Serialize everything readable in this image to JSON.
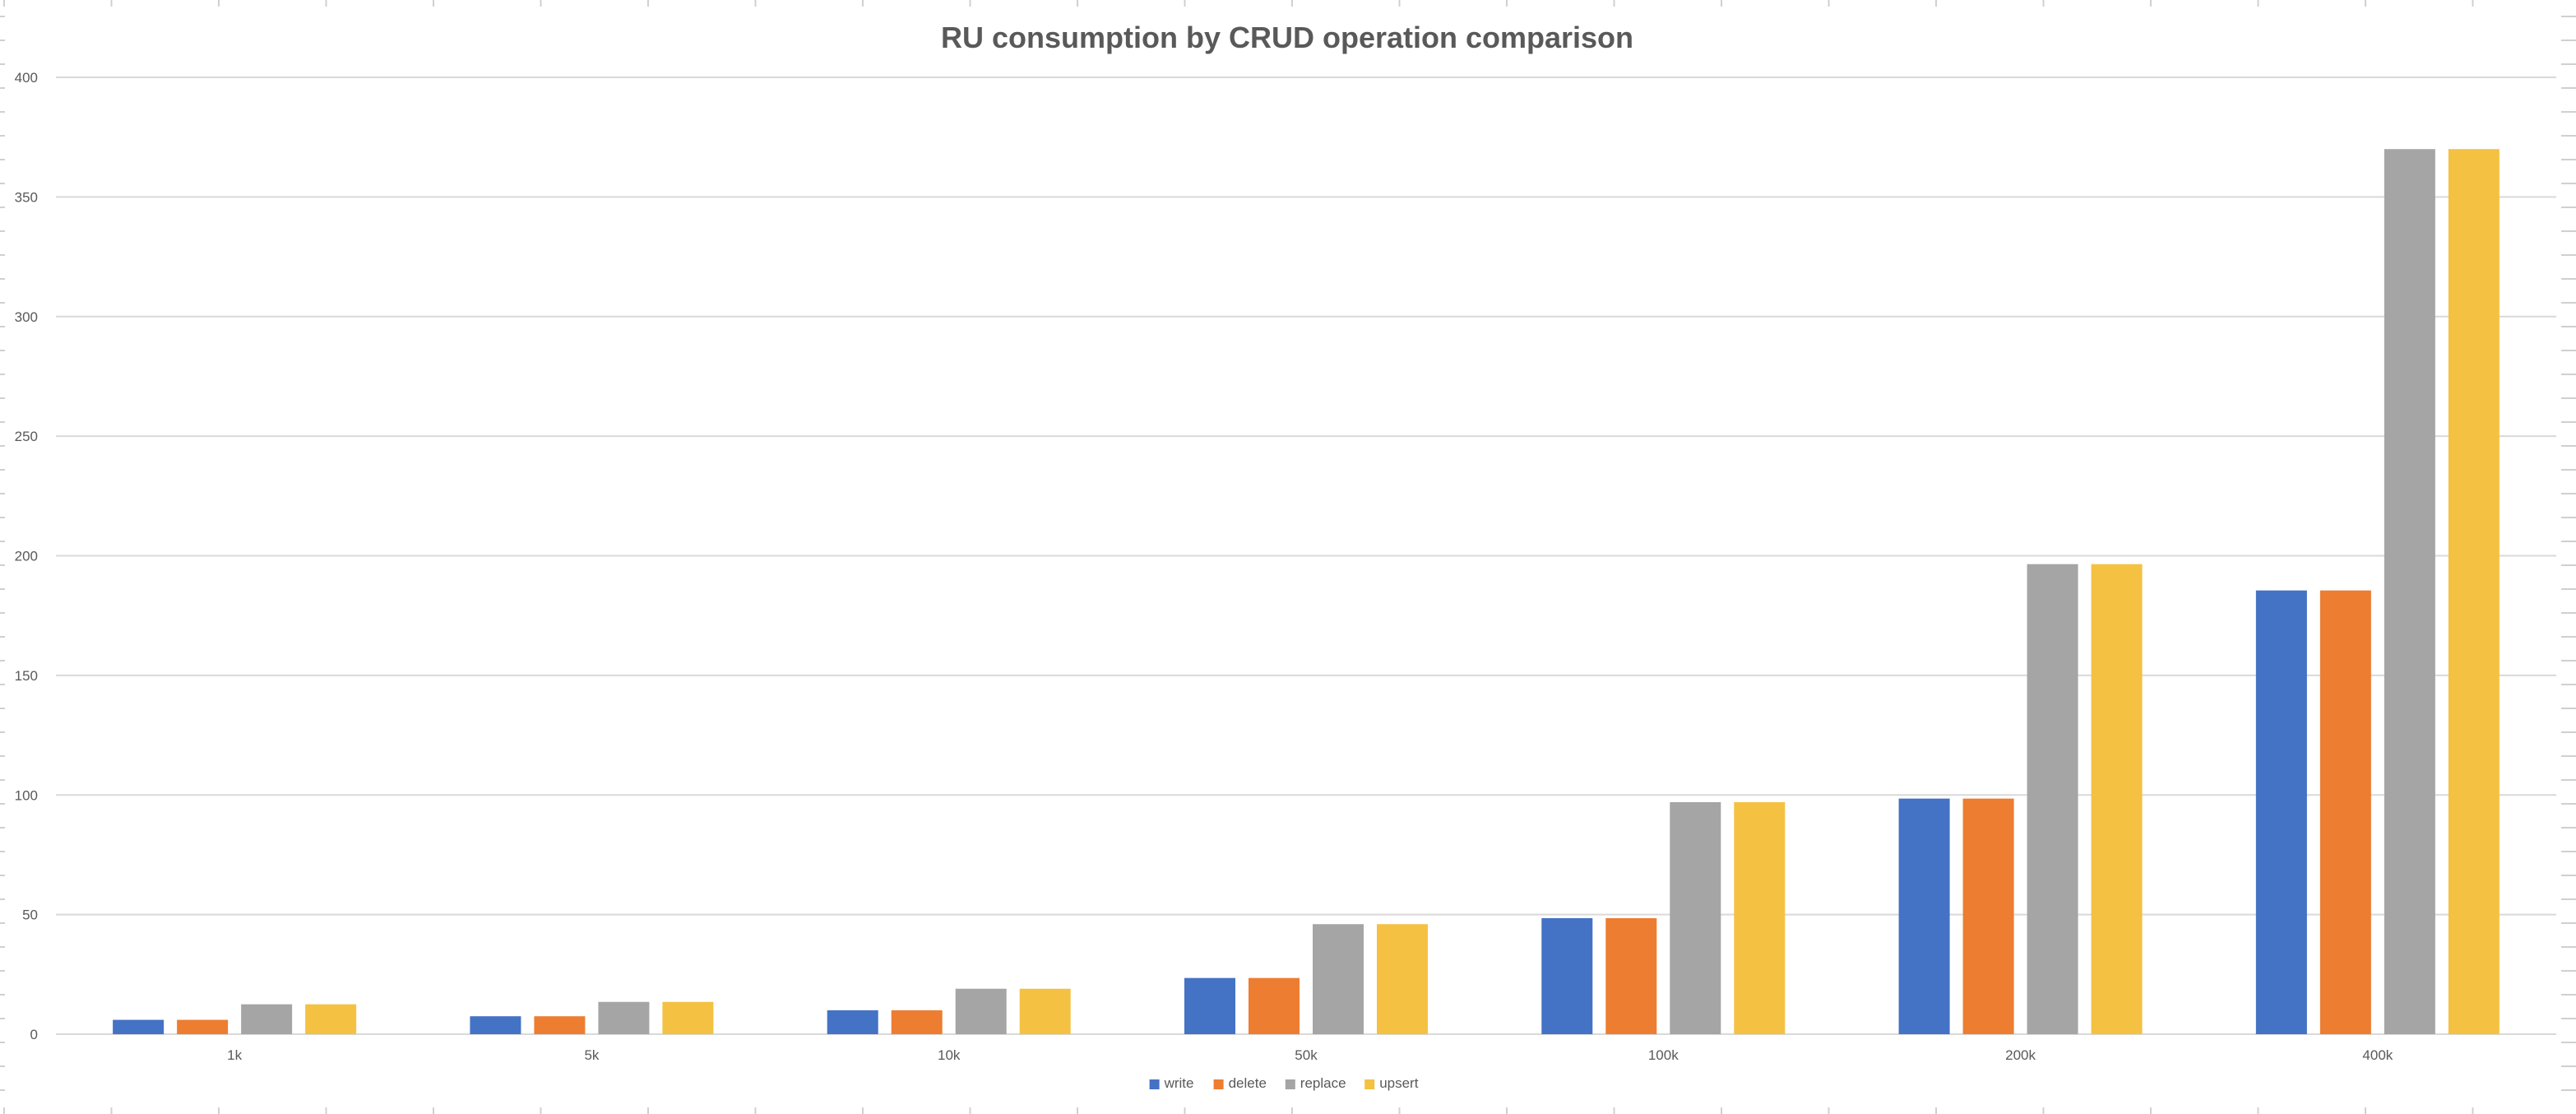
{
  "colors": {
    "write": "#4472c4",
    "delete": "#ed7d31",
    "replace": "#a5a5a5",
    "upsert": "#f4c142",
    "grid": "#d9d9d9",
    "text": "#595959"
  },
  "chart_data": {
    "type": "bar",
    "title": "RU consumption by CRUD operation comparison",
    "xlabel": "",
    "ylabel": "",
    "categories": [
      "1k",
      "5k",
      "10k",
      "50k",
      "100k",
      "200k",
      "400k"
    ],
    "series": [
      {
        "name": "write",
        "values": [
          6,
          7.5,
          10,
          23.5,
          48.5,
          98.5,
          185.5
        ]
      },
      {
        "name": "delete",
        "values": [
          6,
          7.5,
          10,
          23.5,
          48.5,
          98.5,
          185.5
        ]
      },
      {
        "name": "replace",
        "values": [
          12.5,
          13.5,
          19,
          46,
          97,
          196.5,
          370
        ]
      },
      {
        "name": "upsert",
        "values": [
          12.5,
          13.5,
          19,
          46,
          97,
          196.5,
          370
        ]
      }
    ],
    "ylim": [
      0,
      400
    ],
    "yticks": [
      "0",
      "50",
      "100",
      "150",
      "200",
      "250",
      "300",
      "350",
      "400"
    ],
    "grid": true,
    "legend_position": "bottom"
  }
}
